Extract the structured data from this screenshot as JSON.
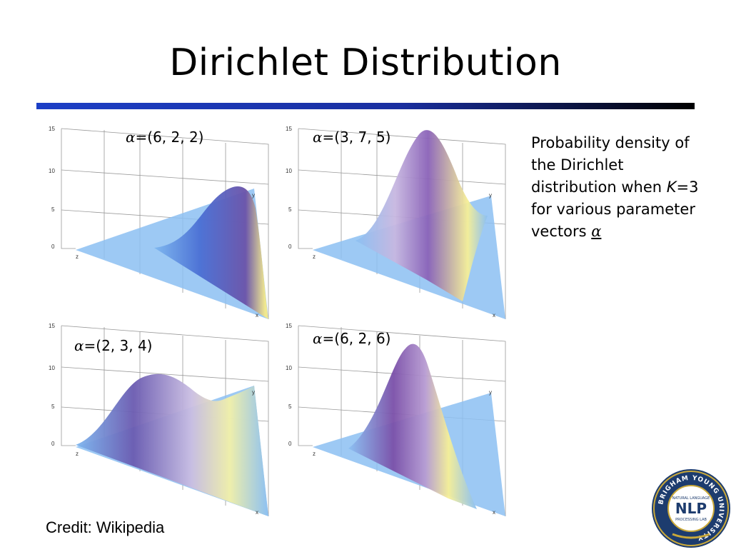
{
  "slide": {
    "title": "Dirichlet Distribution",
    "plots": [
      {
        "prefix": "α",
        "values": "=(6, 2, 2)"
      },
      {
        "prefix": "α",
        "values": "=(3, 7, 5)"
      },
      {
        "prefix": "α",
        "values": "=(2, 3, 4)"
      },
      {
        "prefix": "α",
        "values": "=(6, 2, 6)"
      }
    ],
    "axis": {
      "z_ticks": [
        "0",
        "5",
        "10",
        "15"
      ],
      "x": "x",
      "y": "y",
      "z": "z"
    },
    "description": {
      "line1": "Probability density of the Dirichlet distribution when ",
      "k": "K",
      "line2": "=3 for various parameter vectors ",
      "alpha": "α"
    },
    "credit": "Credit: Wikipedia",
    "logo": {
      "ring_text": "BRIGHAM YOUNG UNIVERSITY",
      "top": "NATURAL LANGUAGE",
      "main": "NLP",
      "bottom": "PROCESSING LAB"
    }
  }
}
